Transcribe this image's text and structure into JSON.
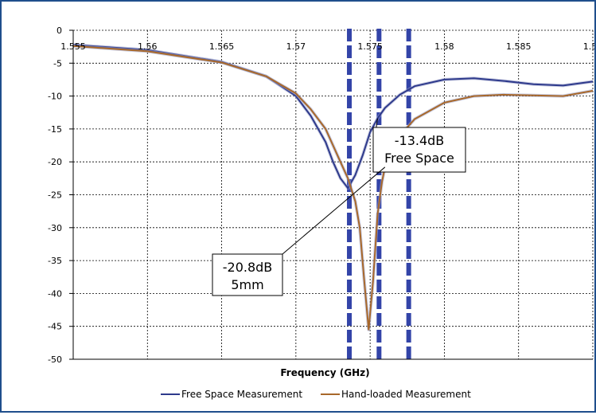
{
  "chart_data": {
    "type": "line",
    "title": "",
    "xlabel": "Frequency (GHz)",
    "ylabel": "",
    "xlim": [
      1.555,
      1.59
    ],
    "ylim": [
      -50,
      0
    ],
    "grid": true,
    "legend_position": "bottom",
    "x_ticks": [
      "1.555",
      "1.56",
      "1.565",
      "1.57",
      "1.575",
      "1.58",
      "1.585",
      "1.59"
    ],
    "y_ticks": [
      "0",
      "-5",
      "-10",
      "-15",
      "-20",
      "-25",
      "-30",
      "-35",
      "-40",
      "-45",
      "-50"
    ],
    "series": [
      {
        "name": "Free Space Measurement",
        "color": "#2e3a8c",
        "points": [
          [
            1.555,
            -2.2
          ],
          [
            1.56,
            -3.0
          ],
          [
            1.565,
            -4.8
          ],
          [
            1.568,
            -7.0
          ],
          [
            1.57,
            -10.0
          ],
          [
            1.571,
            -13.0
          ],
          [
            1.572,
            -17.0
          ],
          [
            1.5725,
            -20.0
          ],
          [
            1.573,
            -22.5
          ],
          [
            1.5735,
            -24.0
          ],
          [
            1.574,
            -22.0
          ],
          [
            1.5745,
            -19.0
          ],
          [
            1.575,
            -15.5
          ],
          [
            1.5755,
            -13.4
          ],
          [
            1.576,
            -11.8
          ],
          [
            1.577,
            -9.8
          ],
          [
            1.578,
            -8.5
          ],
          [
            1.58,
            -7.5
          ],
          [
            1.582,
            -7.3
          ],
          [
            1.584,
            -7.7
          ],
          [
            1.586,
            -8.2
          ],
          [
            1.588,
            -8.4
          ],
          [
            1.59,
            -7.8
          ],
          [
            1.592,
            -6.9
          ]
        ]
      },
      {
        "name": "Hand-loaded Measurement",
        "color": "#a8682a",
        "points": [
          [
            1.555,
            -2.4
          ],
          [
            1.56,
            -3.2
          ],
          [
            1.565,
            -4.9
          ],
          [
            1.568,
            -7.0
          ],
          [
            1.57,
            -9.6
          ],
          [
            1.571,
            -12.0
          ],
          [
            1.572,
            -15.0
          ],
          [
            1.5725,
            -17.5
          ],
          [
            1.573,
            -20.0
          ],
          [
            1.5735,
            -22.5
          ],
          [
            1.574,
            -26.0
          ],
          [
            1.5743,
            -30.0
          ],
          [
            1.5746,
            -38.0
          ],
          [
            1.5749,
            -45.5
          ],
          [
            1.5752,
            -38.0
          ],
          [
            1.5755,
            -28.0
          ],
          [
            1.5758,
            -23.0
          ],
          [
            1.576,
            -20.8
          ],
          [
            1.5765,
            -18.0
          ],
          [
            1.577,
            -16.0
          ],
          [
            1.578,
            -13.5
          ],
          [
            1.58,
            -11.0
          ],
          [
            1.582,
            -10.0
          ],
          [
            1.584,
            -9.8
          ],
          [
            1.586,
            -9.9
          ],
          [
            1.588,
            -10.0
          ],
          [
            1.59,
            -9.2
          ],
          [
            1.592,
            -8.0
          ]
        ]
      }
    ],
    "vertical_markers": [
      1.5736,
      1.5756,
      1.5776
    ],
    "annotations": [
      {
        "lines": [
          "-13.4dB",
          "Free Space"
        ],
        "point": [
          1.5755,
          -13.4
        ]
      },
      {
        "lines": [
          "-20.8dB",
          "5mm"
        ],
        "point": [
          1.576,
          -20.8
        ]
      }
    ]
  }
}
